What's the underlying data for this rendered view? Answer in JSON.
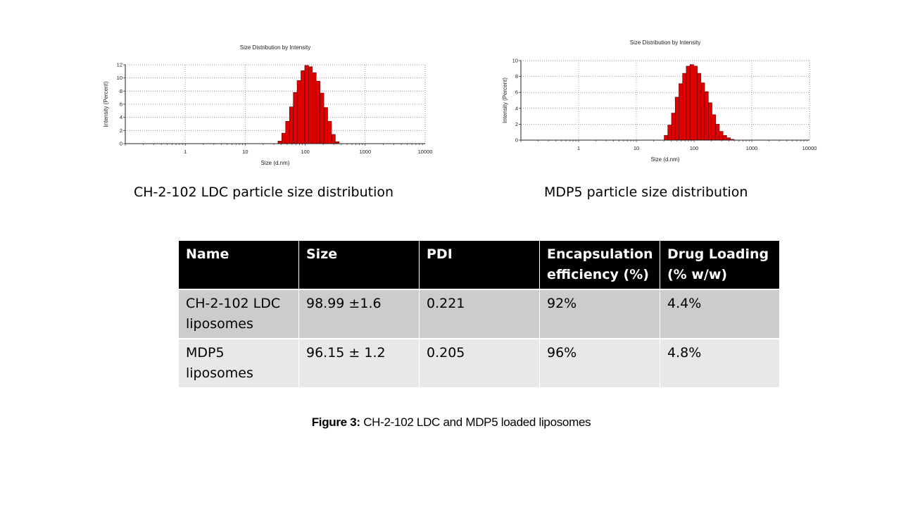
{
  "chart_data": [
    {
      "type": "bar",
      "title": "Size Distribution by Intensity",
      "xlabel": "Size (d.nm)",
      "ylabel": "Intensity (Percent)",
      "x_scale": "log",
      "xlim": [
        0.1,
        10000
      ],
      "ylim": [
        0,
        12
      ],
      "xticks": [
        "1",
        "10",
        "100",
        "1000",
        "10000"
      ],
      "yticks": [
        "0",
        "2",
        "4",
        "6",
        "8",
        "10",
        "12"
      ],
      "grid": true,
      "bar_color": "#e00000",
      "x": [
        37.8,
        43.8,
        50.7,
        58.8,
        68.1,
        78.8,
        91.3,
        105.7,
        122.4,
        141.8,
        164.2,
        190.1,
        220.2,
        255.0,
        295.3,
        342.0
      ],
      "values": [
        0.4,
        1.6,
        3.4,
        5.6,
        7.8,
        9.6,
        11.1,
        11.9,
        11.7,
        10.8,
        9.5,
        7.7,
        5.5,
        3.4,
        1.4,
        0.3
      ]
    },
    {
      "type": "bar",
      "title": "Size Distribution by Intensity",
      "xlabel": "Size (d.nm)",
      "ylabel": "Intensity (Percent)",
      "x_scale": "log",
      "xlim": [
        0.1,
        10000
      ],
      "ylim": [
        0,
        10
      ],
      "xticks": [
        "1",
        "10",
        "100",
        "1000",
        "10000"
      ],
      "yticks": [
        "0",
        "2",
        "4",
        "6",
        "8",
        "10"
      ],
      "grid": true,
      "bar_color": "#e00000",
      "x": [
        32.7,
        37.8,
        43.8,
        50.7,
        58.8,
        68.1,
        78.8,
        91.3,
        105.7,
        122.4,
        141.8,
        164.2,
        190.1,
        220.2,
        255.0,
        295.3,
        342.0,
        396.1,
        458.7
      ],
      "values": [
        0.6,
        1.9,
        3.4,
        5.4,
        7.1,
        8.4,
        9.3,
        9.5,
        9.3,
        8.4,
        7.2,
        6.1,
        4.7,
        3.2,
        2.0,
        1.1,
        0.6,
        0.3,
        0.1
      ]
    }
  ],
  "captions": {
    "chart1": "CH-2-102 LDC particle size distribution",
    "chart2": "MDP5 particle size distribution"
  },
  "table": {
    "headers": [
      "Name",
      "Size",
      "PDI",
      "Encapsulation efficiency (%)",
      "Drug Loading (% w/w)"
    ],
    "rows": [
      [
        "CH-2-102 LDC liposomes",
        "98.99 ±1.6",
        "0.221",
        "92%",
        "4.4%"
      ],
      [
        "MDP5 liposomes",
        "96.15 ± 1.2",
        "0.205",
        "96%",
        "4.8%"
      ]
    ]
  },
  "figure_caption": {
    "label": "Figure 3:",
    "text": " CH-2-102 LDC and MDP5 loaded liposomes"
  }
}
